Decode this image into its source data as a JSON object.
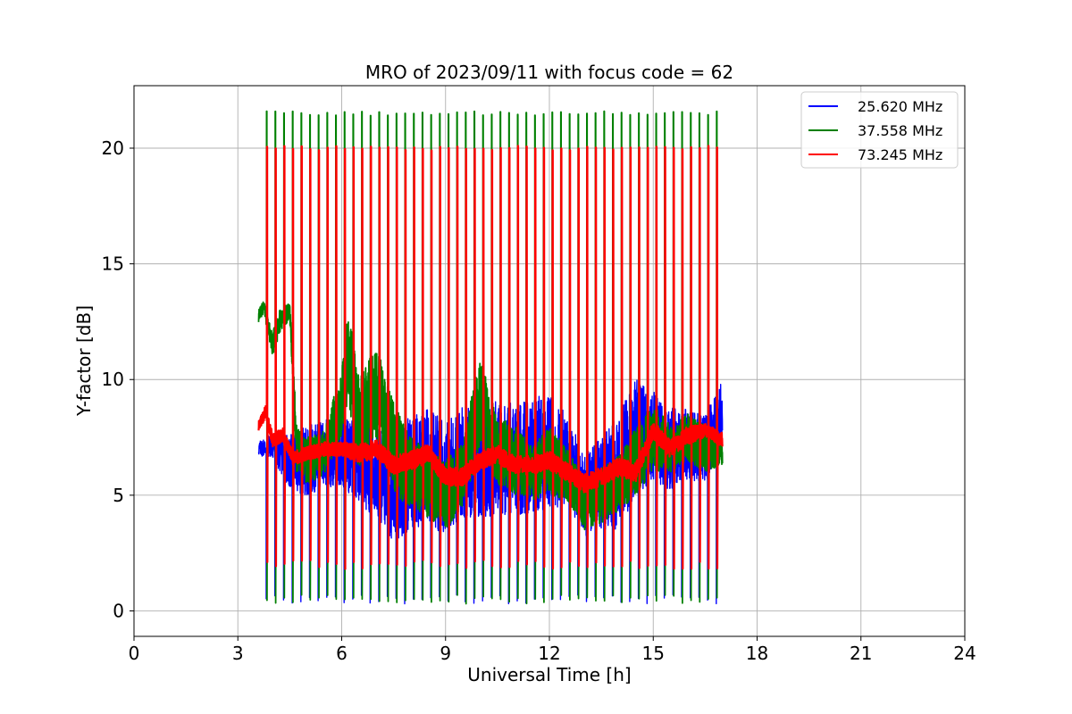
{
  "chart_data": {
    "type": "line",
    "title": "MRO of 2023/09/11 with focus code = 62",
    "xlabel": "Universal Time [h]",
    "ylabel": "Y-factor [dB]",
    "xlim": [
      0,
      24
    ],
    "ylim": [
      -1.1,
      22.7
    ],
    "xticks": [
      0,
      3,
      6,
      9,
      12,
      15,
      18,
      21,
      24
    ],
    "xtick_labels": [
      "0",
      "3",
      "6",
      "9",
      "12",
      "15",
      "18",
      "21",
      "24"
    ],
    "yticks": [
      0,
      5,
      10,
      15,
      20
    ],
    "ytick_labels": [
      "0",
      "5",
      "10",
      "15",
      "20"
    ],
    "grid": true,
    "legend_position": "top-right",
    "x_range_of_data": [
      3.6,
      17.0
    ],
    "pulse_period_h": 0.25,
    "series": [
      {
        "name": "25.620 MHz",
        "color": "#0000ff",
        "pulse_low": 0.3,
        "baseline_x": [
          3.6,
          4.0,
          4.5,
          5.0,
          5.5,
          6.0,
          6.5,
          7.0,
          7.5,
          8.0,
          8.5,
          9.0,
          9.5,
          10.0,
          10.5,
          11.0,
          11.5,
          12.0,
          12.5,
          13.0,
          13.5,
          14.0,
          14.5,
          15.0,
          15.5,
          16.0,
          16.5,
          17.0
        ],
        "baseline_y": [
          7.0,
          7.2,
          6.4,
          6.5,
          6.8,
          6.9,
          6.4,
          6.0,
          5.5,
          6.0,
          6.2,
          5.8,
          6.5,
          6.5,
          6.6,
          6.5,
          6.8,
          6.8,
          6.5,
          5.0,
          5.5,
          6.0,
          7.5,
          7.5,
          7.0,
          7.2,
          7.0,
          8.5
        ],
        "spread": [
          0.3,
          0.6,
          1.2,
          1.5,
          1.5,
          1.5,
          1.8,
          2.0,
          2.5,
          2.5,
          2.5,
          2.5,
          2.5,
          2.5,
          2.5,
          2.5,
          2.5,
          2.5,
          2.0,
          1.8,
          2.0,
          2.5,
          2.5,
          2.0,
          1.8,
          1.5,
          1.5,
          1.5
        ]
      },
      {
        "name": "37.558 MHz",
        "color": "#008000",
        "pulse_high": 21.5,
        "pulse_low": 0.3,
        "baseline_x": [
          3.6,
          3.75,
          4.0,
          4.2,
          4.5,
          4.7,
          5.0,
          5.5,
          6.0,
          6.2,
          6.5,
          7.0,
          7.5,
          8.0,
          8.5,
          9.0,
          9.5,
          10.0,
          10.5,
          11.0,
          11.5,
          12.0,
          12.5,
          13.0,
          13.5,
          14.0,
          14.5,
          15.0,
          15.5,
          16.0,
          16.5,
          17.0
        ],
        "baseline_y": [
          12.7,
          13.2,
          11.5,
          12.5,
          13.0,
          7.0,
          6.5,
          6.8,
          9.0,
          11.0,
          8.0,
          9.5,
          7.0,
          6.0,
          5.5,
          5.0,
          6.0,
          9.0,
          7.0,
          6.5,
          6.0,
          6.5,
          6.0,
          4.5,
          5.0,
          5.5,
          6.5,
          7.5,
          7.0,
          7.5,
          7.0,
          6.8
        ],
        "spread": [
          0.3,
          0.3,
          0.6,
          0.5,
          0.4,
          1.0,
          1.0,
          1.0,
          1.5,
          2.0,
          2.0,
          2.0,
          2.0,
          1.5,
          1.5,
          1.5,
          1.5,
          2.0,
          1.5,
          1.5,
          1.2,
          1.5,
          1.2,
          1.0,
          1.2,
          1.2,
          1.5,
          1.5,
          1.0,
          1.0,
          1.0,
          0.5
        ]
      },
      {
        "name": "73.245 MHz",
        "color": "#ff0000",
        "pulse_high": 20.0,
        "pulse_low": 1.8,
        "baseline_x": [
          3.6,
          3.8,
          4.0,
          4.3,
          4.6,
          5.0,
          5.5,
          6.0,
          6.5,
          7.0,
          7.5,
          8.0,
          8.5,
          9.0,
          9.5,
          10.0,
          10.5,
          11.0,
          11.5,
          12.0,
          12.5,
          13.0,
          13.5,
          14.0,
          14.5,
          15.0,
          15.5,
          16.0,
          16.5,
          17.0
        ],
        "baseline_y": [
          8.0,
          8.6,
          7.4,
          7.6,
          6.6,
          6.8,
          7.0,
          7.0,
          6.8,
          7.0,
          6.3,
          6.5,
          6.8,
          5.8,
          5.8,
          6.5,
          6.8,
          6.3,
          6.3,
          6.5,
          6.0,
          5.5,
          5.8,
          6.2,
          6.0,
          7.8,
          7.0,
          7.6,
          7.8,
          7.4
        ],
        "spread": [
          0.2,
          0.3,
          0.3,
          0.3,
          0.3,
          0.3,
          0.3,
          0.3,
          0.4,
          0.4,
          0.4,
          0.4,
          0.4,
          0.4,
          0.4,
          0.4,
          0.4,
          0.4,
          0.4,
          0.4,
          0.4,
          0.4,
          0.4,
          0.4,
          0.4,
          0.4,
          0.4,
          0.4,
          0.3,
          0.3
        ]
      }
    ]
  }
}
